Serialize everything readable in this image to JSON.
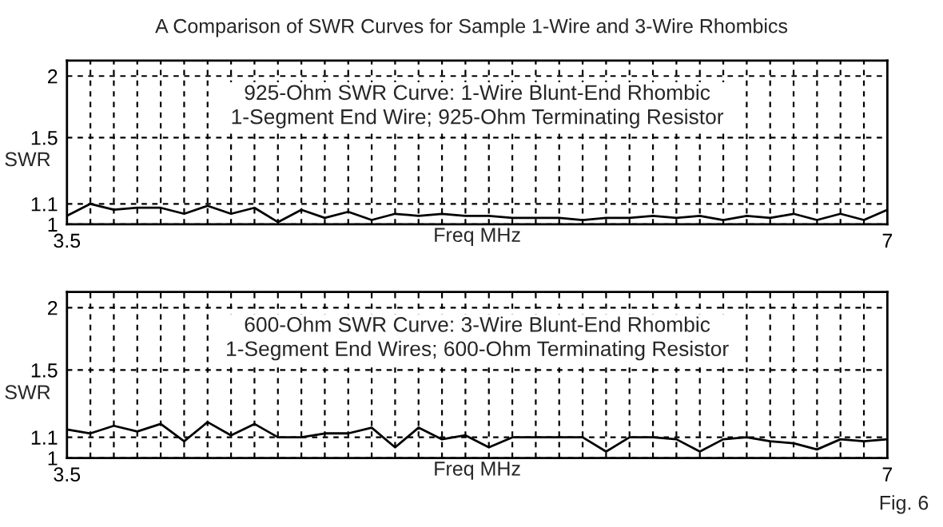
{
  "chart_data": [
    {
      "type": "line",
      "title": "A Comparison of SWR Curves for Sample 1-Wire and 3-Wire Rhombics",
      "xlabel": "Freq MHz",
      "ylabel": "SWR",
      "annotations": [
        "925-Ohm SWR Curve: 1-Wire Blunt-End Rhombic\n1-Segment End Wire; 925-Ohm Terminating Resistor"
      ],
      "x": [
        3.5,
        3.6,
        3.7,
        3.8,
        3.9,
        4.0,
        4.1,
        4.2,
        4.3,
        4.4,
        4.5,
        4.6,
        4.7,
        4.8,
        4.9,
        5.0,
        5.1,
        5.2,
        5.3,
        5.4,
        5.5,
        5.6,
        5.7,
        5.8,
        5.9,
        6.0,
        6.1,
        6.2,
        6.3,
        6.4,
        6.5,
        6.6,
        6.7,
        6.8,
        6.9,
        7.0
      ],
      "series": [
        {
          "color": "#000000",
          "values": [
            1.04,
            1.1,
            1.07,
            1.08,
            1.08,
            1.05,
            1.09,
            1.05,
            1.08,
            1.01,
            1.07,
            1.03,
            1.06,
            1.02,
            1.05,
            1.04,
            1.05,
            1.04,
            1.04,
            1.03,
            1.03,
            1.03,
            1.02,
            1.03,
            1.03,
            1.04,
            1.03,
            1.04,
            1.02,
            1.04,
            1.03,
            1.05,
            1.02,
            1.05,
            1.02,
            1.07
          ]
        }
      ],
      "log": "y",
      "xlim": [
        3.5,
        7
      ],
      "ylim": [
        1,
        2.15
      ],
      "yticks": [
        1,
        1.1,
        1.5,
        2
      ],
      "xticks": [
        3.5,
        {
          "value": 3.6,
          "label": null
        },
        {
          "value": 3.7,
          "label": null
        },
        {
          "value": 3.8,
          "label": null
        },
        {
          "value": 3.9,
          "label": null
        },
        {
          "value": 4.0,
          "label": null
        },
        {
          "value": 4.1,
          "label": null
        },
        {
          "value": 4.2,
          "label": null
        },
        {
          "value": 4.3,
          "label": null
        },
        {
          "value": 4.4,
          "label": null
        },
        {
          "value": 4.5,
          "label": null
        },
        {
          "value": 4.6,
          "label": null
        },
        {
          "value": 4.7,
          "label": null
        },
        {
          "value": 4.8,
          "label": null
        },
        {
          "value": 4.9,
          "label": null
        },
        {
          "value": 5.0,
          "label": null
        },
        {
          "value": 5.1,
          "label": null
        },
        {
          "value": 5.2,
          "label": null
        },
        {
          "value": 5.3,
          "label": null
        },
        {
          "value": 5.4,
          "label": null
        },
        {
          "value": 5.5,
          "label": null
        },
        {
          "value": 5.6,
          "label": null
        },
        {
          "value": 5.7,
          "label": null
        },
        {
          "value": 5.8,
          "label": null
        },
        {
          "value": 5.9,
          "label": null
        },
        {
          "value": 6.0,
          "label": null
        },
        {
          "value": 6.1,
          "label": null
        },
        {
          "value": 6.2,
          "label": null
        },
        {
          "value": 6.3,
          "label": null
        },
        {
          "value": 6.4,
          "label": null
        },
        {
          "value": 6.5,
          "label": null
        },
        {
          "value": 6.6,
          "label": null
        },
        {
          "value": 6.7,
          "label": null
        },
        {
          "value": 6.8,
          "label": null
        },
        {
          "value": 6.9,
          "label": null
        },
        7
      ],
      "grid": true,
      "line_style": "solid",
      "marker": "none",
      "legend": false
    },
    {
      "type": "line",
      "xlabel": "Freq MHz",
      "ylabel": "SWR",
      "annotations": [
        "600-Ohm SWR Curve: 3-Wire Blunt-End Rhombic\n1-Segment End Wires; 600-Ohm Terminating Resistor",
        "Fig. 6"
      ],
      "x": [
        3.5,
        3.6,
        3.7,
        3.8,
        3.9,
        4.0,
        4.1,
        4.2,
        4.3,
        4.4,
        4.5,
        4.6,
        4.7,
        4.8,
        4.9,
        5.0,
        5.1,
        5.2,
        5.3,
        5.4,
        5.5,
        5.6,
        5.7,
        5.8,
        5.9,
        6.0,
        6.1,
        6.2,
        6.3,
        6.4,
        6.5,
        6.6,
        6.7,
        6.8,
        6.9,
        7.0
      ],
      "series": [
        {
          "color": "#000000",
          "values": [
            1.14,
            1.12,
            1.16,
            1.13,
            1.17,
            1.08,
            1.18,
            1.11,
            1.17,
            1.1,
            1.1,
            1.12,
            1.12,
            1.15,
            1.05,
            1.15,
            1.09,
            1.11,
            1.05,
            1.1,
            1.1,
            1.1,
            1.1,
            1.03,
            1.1,
            1.1,
            1.09,
            1.03,
            1.09,
            1.1,
            1.08,
            1.07,
            1.04,
            1.09,
            1.08,
            1.09
          ]
        }
      ],
      "log": "y",
      "xlim": [
        3.5,
        7
      ],
      "ylim": [
        1,
        2.15
      ],
      "yticks": [
        1,
        1.1,
        1.5,
        2
      ],
      "xticks": [
        3.5,
        {
          "value": 3.6,
          "label": null
        },
        {
          "value": 3.7,
          "label": null
        },
        {
          "value": 3.8,
          "label": null
        },
        {
          "value": 3.9,
          "label": null
        },
        {
          "value": 4.0,
          "label": null
        },
        {
          "value": 4.1,
          "label": null
        },
        {
          "value": 4.2,
          "label": null
        },
        {
          "value": 4.3,
          "label": null
        },
        {
          "value": 4.4,
          "label": null
        },
        {
          "value": 4.5,
          "label": null
        },
        {
          "value": 4.6,
          "label": null
        },
        {
          "value": 4.7,
          "label": null
        },
        {
          "value": 4.8,
          "label": null
        },
        {
          "value": 4.9,
          "label": null
        },
        {
          "value": 5.0,
          "label": null
        },
        {
          "value": 5.1,
          "label": null
        },
        {
          "value": 5.2,
          "label": null
        },
        {
          "value": 5.3,
          "label": null
        },
        {
          "value": 5.4,
          "label": null
        },
        {
          "value": 5.5,
          "label": null
        },
        {
          "value": 5.6,
          "label": null
        },
        {
          "value": 5.7,
          "label": null
        },
        {
          "value": 5.8,
          "label": null
        },
        {
          "value": 5.9,
          "label": null
        },
        {
          "value": 6.0,
          "label": null
        },
        {
          "value": 6.1,
          "label": null
        },
        {
          "value": 6.2,
          "label": null
        },
        {
          "value": 6.3,
          "label": null
        },
        {
          "value": 6.4,
          "label": null
        },
        {
          "value": 6.5,
          "label": null
        },
        {
          "value": 6.6,
          "label": null
        },
        {
          "value": 6.7,
          "label": null
        },
        {
          "value": 6.8,
          "label": null
        },
        {
          "value": 6.9,
          "label": null
        },
        7
      ],
      "grid": true,
      "line_style": "solid",
      "marker": "none",
      "legend": false
    }
  ]
}
